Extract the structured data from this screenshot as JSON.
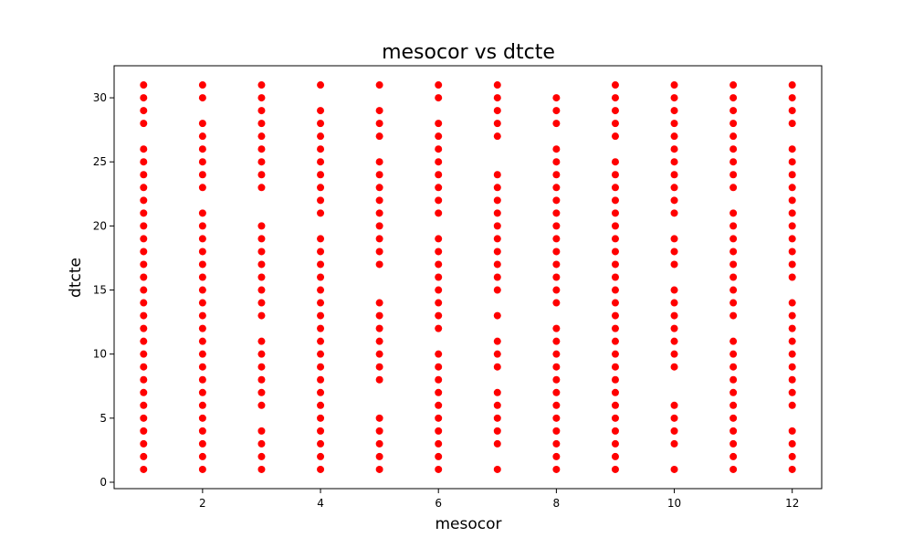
{
  "chart_data": {
    "type": "scatter",
    "title": "mesocor vs dtcte",
    "xlabel": "mesocor",
    "ylabel": "dtcte",
    "xlim": [
      0.5,
      12.5
    ],
    "ylim": [
      -0.5,
      32.5
    ],
    "xticks": [
      2,
      4,
      6,
      8,
      10,
      12
    ],
    "yticks": [
      0,
      5,
      10,
      15,
      20,
      25,
      30
    ],
    "grid": false,
    "legend": "none",
    "marker_color": "#ff0000",
    "series": [
      {
        "points": [
          {
            "x": 1,
            "y": [
              1,
              2,
              3,
              4,
              5,
              6,
              7,
              8,
              9,
              10,
              11,
              12,
              13,
              14,
              15,
              16,
              17,
              18,
              19,
              20,
              21,
              22,
              23,
              24,
              25,
              26,
              28,
              29,
              30,
              31
            ]
          },
          {
            "x": 2,
            "y": [
              1,
              2,
              3,
              4,
              5,
              6,
              7,
              8,
              9,
              10,
              11,
              12,
              13,
              14,
              15,
              16,
              17,
              18,
              19,
              20,
              21,
              23,
              24,
              25,
              26,
              27,
              28,
              30,
              31
            ]
          },
          {
            "x": 3,
            "y": [
              1,
              2,
              3,
              4,
              6,
              7,
              8,
              9,
              10,
              11,
              13,
              14,
              15,
              16,
              17,
              18,
              19,
              20,
              23,
              24,
              25,
              26,
              27,
              28,
              29,
              30,
              31
            ]
          },
          {
            "x": 4,
            "y": [
              1,
              2,
              3,
              4,
              5,
              6,
              7,
              8,
              9,
              10,
              11,
              12,
              13,
              14,
              15,
              16,
              17,
              18,
              19,
              21,
              22,
              23,
              24,
              25,
              26,
              27,
              28,
              29,
              31
            ]
          },
          {
            "x": 5,
            "y": [
              1,
              2,
              3,
              4,
              5,
              8,
              9,
              10,
              11,
              12,
              13,
              14,
              17,
              18,
              19,
              20,
              21,
              22,
              23,
              24,
              25,
              27,
              28,
              29,
              31
            ]
          },
          {
            "x": 6,
            "y": [
              1,
              2,
              3,
              4,
              5,
              6,
              7,
              8,
              9,
              10,
              12,
              13,
              14,
              15,
              16,
              17,
              18,
              19,
              21,
              22,
              23,
              24,
              25,
              26,
              27,
              28,
              30,
              31
            ]
          },
          {
            "x": 7,
            "y": [
              1,
              3,
              4,
              5,
              6,
              7,
              9,
              10,
              11,
              13,
              15,
              16,
              17,
              18,
              19,
              20,
              21,
              22,
              23,
              24,
              27,
              28,
              29,
              30,
              31
            ]
          },
          {
            "x": 8,
            "y": [
              1,
              2,
              3,
              4,
              5,
              6,
              7,
              8,
              9,
              10,
              11,
              12,
              14,
              15,
              16,
              17,
              18,
              19,
              20,
              21,
              22,
              23,
              24,
              25,
              26,
              28,
              29,
              30
            ]
          },
          {
            "x": 9,
            "y": [
              1,
              2,
              3,
              4,
              5,
              6,
              7,
              8,
              9,
              10,
              11,
              12,
              13,
              14,
              15,
              16,
              17,
              18,
              19,
              20,
              21,
              22,
              23,
              24,
              25,
              27,
              28,
              29,
              30,
              31
            ]
          },
          {
            "x": 10,
            "y": [
              1,
              3,
              4,
              5,
              6,
              9,
              10,
              11,
              12,
              13,
              14,
              15,
              17,
              18,
              19,
              21,
              22,
              23,
              24,
              25,
              26,
              27,
              28,
              29,
              30,
              31
            ]
          },
          {
            "x": 11,
            "y": [
              1,
              2,
              3,
              4,
              5,
              6,
              7,
              8,
              9,
              10,
              11,
              13,
              14,
              15,
              16,
              17,
              18,
              19,
              20,
              21,
              23,
              24,
              25,
              26,
              27,
              28,
              29,
              30,
              31
            ]
          },
          {
            "x": 12,
            "y": [
              1,
              2,
              3,
              4,
              6,
              7,
              8,
              9,
              10,
              11,
              12,
              13,
              14,
              16,
              17,
              18,
              19,
              20,
              21,
              22,
              23,
              24,
              25,
              26,
              28,
              29,
              30,
              31
            ]
          }
        ]
      }
    ]
  }
}
